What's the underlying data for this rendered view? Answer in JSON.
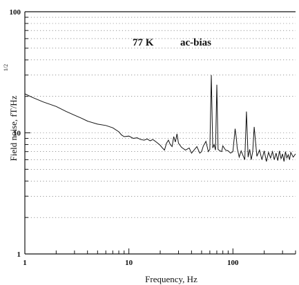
{
  "chart_data": {
    "type": "line",
    "xlabel": "Frequency, Hz",
    "ylabel": "Field noise,  fT/Hz",
    "ylabel_superscript": "1/2",
    "xscale": "log",
    "yscale": "log",
    "xlim": [
      1,
      400
    ],
    "ylim": [
      1,
      100
    ],
    "x_tick_labels": [
      "1",
      "10",
      "100"
    ],
    "y_tick_labels": [
      "1",
      "10",
      "100"
    ],
    "grid": "dotted",
    "annotations": [
      "77 K",
      "ac-bias"
    ],
    "series": [
      {
        "x": [
          1,
          1.2,
          1.5,
          2,
          2.5,
          3,
          3.5,
          4,
          5,
          6,
          7,
          8,
          8.5,
          9,
          10,
          11,
          12,
          13,
          14,
          15,
          16,
          17,
          18,
          19,
          20,
          21,
          22,
          23,
          24,
          25,
          26,
          27,
          28,
          29,
          30,
          32,
          35,
          38,
          40,
          45,
          48,
          50,
          52,
          55,
          58,
          60,
          62,
          64,
          66,
          68,
          70,
          72,
          75,
          78,
          80,
          85,
          90,
          95,
          100,
          105,
          108,
          110,
          115,
          120,
          125,
          130,
          135,
          140,
          145,
          150,
          155,
          160,
          170,
          180,
          190,
          200,
          210,
          220,
          230,
          240,
          250,
          260,
          270,
          280,
          290,
          300,
          310,
          320,
          330,
          340,
          350,
          360,
          380,
          400
        ],
        "y": [
          21,
          19.5,
          18,
          16.5,
          15,
          14,
          13.2,
          12.5,
          11.8,
          11.5,
          11,
          10.2,
          9.6,
          9.3,
          9.4,
          9.0,
          9.1,
          8.8,
          8.7,
          8.9,
          8.6,
          8.8,
          8.5,
          8.2,
          7.9,
          7.5,
          7.2,
          8.2,
          8.7,
          8.0,
          7.7,
          9.3,
          8.4,
          9.8,
          8.2,
          7.6,
          7.2,
          7.5,
          6.8,
          7.7,
          6.8,
          7.0,
          7.8,
          8.5,
          7.0,
          7.3,
          30,
          7.5,
          8.0,
          7.2,
          25,
          7.3,
          7.1,
          7.0,
          7.8,
          7.2,
          7.1,
          6.8,
          7.0,
          10.8,
          9.0,
          7.5,
          6.3,
          7.1,
          6.5,
          6.0,
          15,
          6.3,
          7.3,
          6.0,
          7.0,
          11.2,
          6.4,
          7.2,
          6.0,
          7.1,
          5.8,
          6.9,
          6.2,
          7.0,
          6.0,
          6.8,
          5.9,
          7.1,
          6.1,
          6.7,
          5.8,
          7.0,
          6.2,
          6.6,
          6.0,
          6.9,
          6.3,
          6.7
        ]
      }
    ]
  }
}
